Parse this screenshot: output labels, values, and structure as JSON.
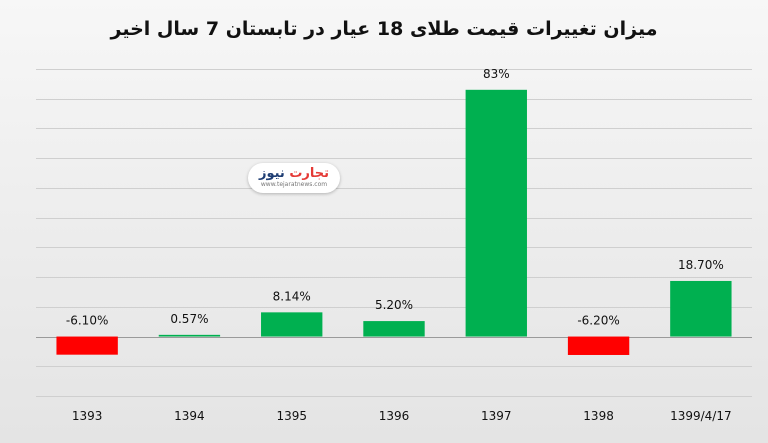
{
  "chart_data": {
    "type": "bar",
    "title": "میزان تغییرات قیمت طلای 18 عیار در تابستان 7 سال اخیر",
    "categories": [
      "1393",
      "1394",
      "1395",
      "1396",
      "1397",
      "1398",
      "1399/4/17"
    ],
    "values": [
      -6.1,
      0.57,
      8.14,
      5.2,
      83,
      -6.2,
      18.7
    ],
    "data_labels": [
      "-6.10%",
      "0.57%",
      "8.14%",
      "5.20%",
      "83%",
      "-6.20%",
      "18.70%"
    ],
    "xlabel": "",
    "ylabel": "",
    "ylim": [
      -20,
      90
    ],
    "grid": true,
    "legend": "none",
    "positive_color": "#00b050",
    "negative_color": "#ff0000"
  },
  "watermark": {
    "name_part1": "تجارت",
    "name_part2": "نیوز",
    "url": "www.tejaratnews.com"
  }
}
